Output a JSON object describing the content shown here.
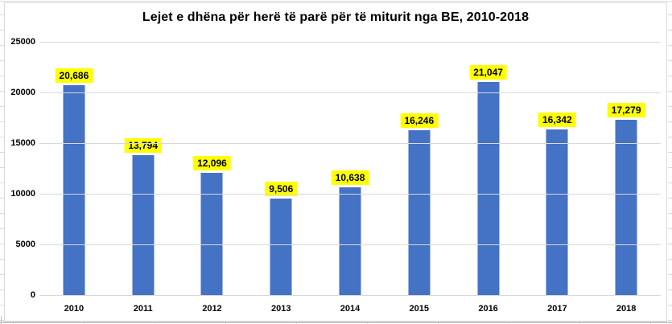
{
  "chart_data": {
    "type": "bar",
    "title": "Lejet e dhëna për herë të parë për të miturit nga BE, 2010-2018",
    "categories": [
      "2010",
      "2011",
      "2012",
      "2013",
      "2014",
      "2015",
      "2016",
      "2017",
      "2018"
    ],
    "values": [
      20686,
      13794,
      12096,
      9506,
      10638,
      16246,
      21047,
      16342,
      17279
    ],
    "value_labels": [
      "20,686",
      "13,794",
      "12,096",
      "9,506",
      "10,638",
      "16,246",
      "21,047",
      "16,342",
      "17,279"
    ],
    "xlabel": "",
    "ylabel": "",
    "ylim": [
      0,
      25000
    ],
    "yticks": [
      0,
      5000,
      10000,
      15000,
      20000,
      25000
    ],
    "ytick_labels": [
      "0",
      "5000",
      "10000",
      "15000",
      "20000",
      "25000"
    ],
    "grid": true,
    "legend": "none",
    "colors": {
      "bar": "#4472C4",
      "value_label_background": "#FFFF00",
      "value_label_text": "#000000",
      "gridline": "#D9D9D9",
      "title_text": "#000000",
      "axis_text": "#000000",
      "chart_border": "#D9D9D9"
    }
  }
}
